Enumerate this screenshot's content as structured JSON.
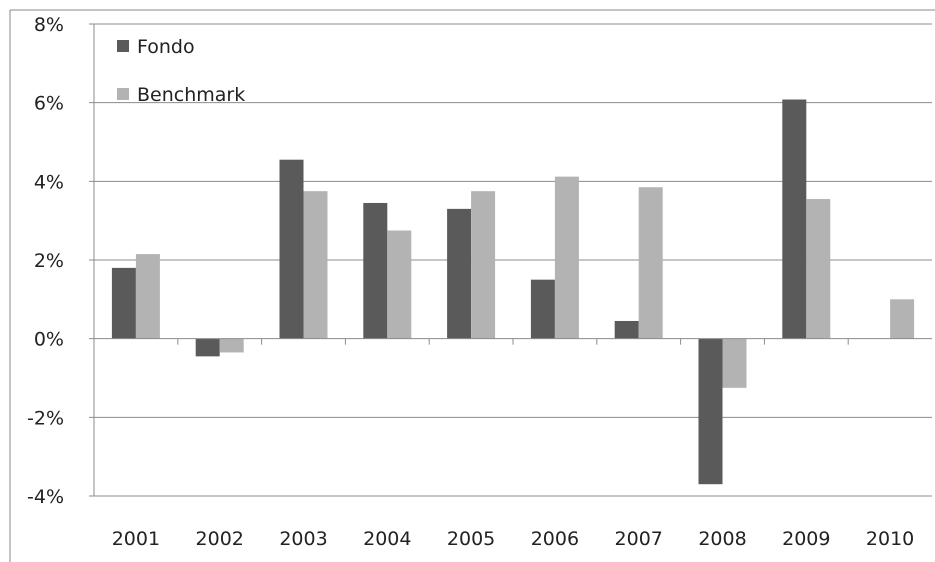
{
  "chart_data": {
    "type": "bar",
    "categories": [
      "2001",
      "2002",
      "2003",
      "2004",
      "2005",
      "2006",
      "2007",
      "2008",
      "2009",
      "2010"
    ],
    "series": [
      {
        "name": "Fondo",
        "color": "#5a5a5a",
        "values": [
          1.8,
          -0.45,
          4.55,
          3.45,
          3.3,
          1.5,
          0.45,
          -3.7,
          6.08,
          null
        ]
      },
      {
        "name": "Benchmark",
        "color": "#b3b3b3",
        "values": [
          2.15,
          -0.35,
          3.75,
          2.75,
          3.75,
          4.12,
          3.85,
          -1.25,
          3.55,
          1.0
        ]
      }
    ],
    "ylim": [
      -4,
      8
    ],
    "yticks": [
      "-4%",
      "-2%",
      "0%",
      "2%",
      "4%",
      "6%",
      "8%"
    ],
    "ytick_values": [
      -4,
      -2,
      0,
      2,
      4,
      6,
      8
    ],
    "grid": true,
    "legend_position": "top-left"
  }
}
